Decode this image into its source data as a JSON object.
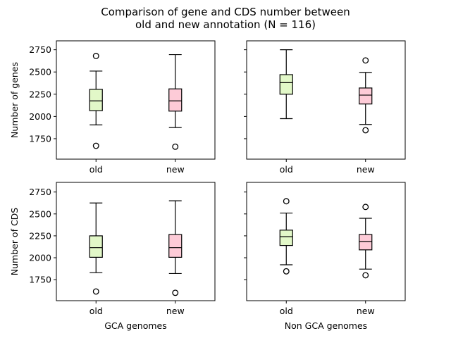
{
  "figure": {
    "title_line1": "Comparison of gene and CDS number between",
    "title_line2": "old and new annotation (N = 116)"
  },
  "chart_data": [
    {
      "type": "box",
      "panel": "top-left",
      "title": "",
      "xlabel": "",
      "ylabel": "Number of genes",
      "categories": [
        "old",
        "new"
      ],
      "ylim": [
        1520,
        2850
      ],
      "yticks": [
        1750,
        2000,
        2250,
        2500,
        2750
      ],
      "boxes": [
        {
          "label": "old",
          "whisker_low": 1905,
          "q1": 2065,
          "median": 2175,
          "q3": 2305,
          "whisker_high": 2510,
          "outliers": [
            2680,
            1670
          ],
          "color": "#e2f8c8"
        },
        {
          "label": "new",
          "whisker_low": 1875,
          "q1": 2060,
          "median": 2175,
          "q3": 2310,
          "whisker_high": 2695,
          "outliers": [
            1660
          ],
          "color": "#fdcbd7"
        }
      ]
    },
    {
      "type": "box",
      "panel": "top-right",
      "title": "",
      "xlabel": "",
      "ylabel": "",
      "categories": [
        "old",
        "new"
      ],
      "ylim": [
        1520,
        2850
      ],
      "yticks": [
        1750,
        2000,
        2250,
        2500,
        2750
      ],
      "boxes": [
        {
          "label": "old",
          "whisker_low": 1975,
          "q1": 2250,
          "median": 2380,
          "q3": 2470,
          "whisker_high": 2750,
          "outliers": [],
          "color": "#e2f8c8"
        },
        {
          "label": "new",
          "whisker_low": 1910,
          "q1": 2140,
          "median": 2240,
          "q3": 2320,
          "whisker_high": 2495,
          "outliers": [
            2630,
            1845
          ],
          "color": "#fdcbd7"
        }
      ]
    },
    {
      "type": "box",
      "panel": "bottom-left",
      "title": "",
      "xlabel": "GCA genomes",
      "ylabel": "Number of CDS",
      "categories": [
        "old",
        "new"
      ],
      "ylim": [
        1510,
        2860
      ],
      "yticks": [
        1750,
        2000,
        2250,
        2500,
        2750
      ],
      "boxes": [
        {
          "label": "old",
          "whisker_low": 1830,
          "q1": 2005,
          "median": 2115,
          "q3": 2250,
          "whisker_high": 2625,
          "outliers": [
            1615
          ],
          "color": "#e2f8c8"
        },
        {
          "label": "new",
          "whisker_low": 1820,
          "q1": 2005,
          "median": 2115,
          "q3": 2265,
          "whisker_high": 2650,
          "outliers": [
            1600
          ],
          "color": "#fdcbd7"
        }
      ]
    },
    {
      "type": "box",
      "panel": "bottom-right",
      "title": "",
      "xlabel": "Non GCA genomes",
      "ylabel": "",
      "categories": [
        "old",
        "new"
      ],
      "ylim": [
        1510,
        2860
      ],
      "yticks": [
        1750,
        2000,
        2250,
        2500,
        2750
      ],
      "boxes": [
        {
          "label": "old",
          "whisker_low": 1920,
          "q1": 2140,
          "median": 2240,
          "q3": 2315,
          "whisker_high": 2510,
          "outliers": [
            2645,
            1845
          ],
          "color": "#e2f8c8"
        },
        {
          "label": "new",
          "whisker_low": 1870,
          "q1": 2090,
          "median": 2185,
          "q3": 2265,
          "whisker_high": 2450,
          "outliers": [
            2580,
            1800
          ],
          "color": "#fdcbd7"
        }
      ]
    }
  ]
}
